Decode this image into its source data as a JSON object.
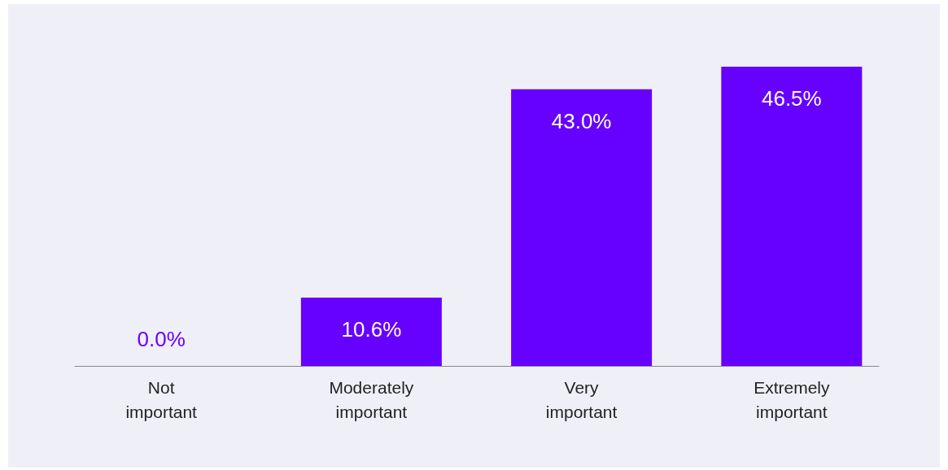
{
  "chart_data": {
    "type": "bar",
    "categories": [
      "Not important",
      "Moderately important",
      "Very important",
      "Extremely important"
    ],
    "values": [
      0.0,
      10.6,
      43.0,
      46.5
    ],
    "value_labels": [
      "0.0%",
      "10.6%",
      "43.0%",
      "46.5%"
    ],
    "color": "#6600ff",
    "grid": false
  }
}
